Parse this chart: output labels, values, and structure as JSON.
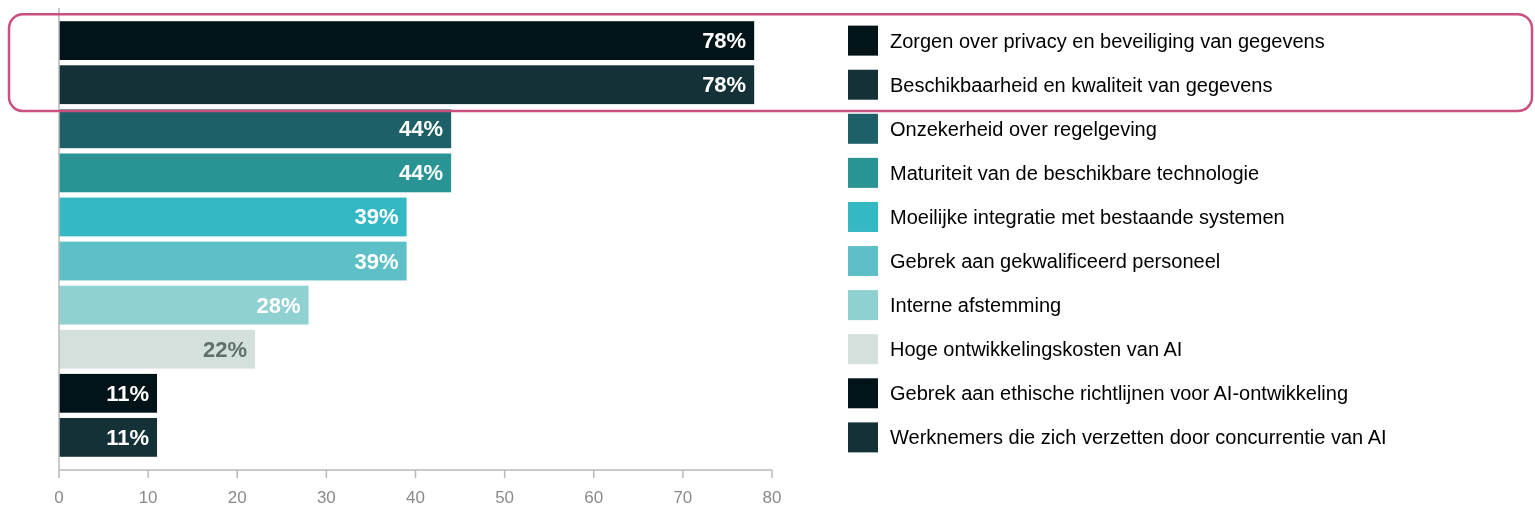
{
  "chart_data": {
    "type": "bar",
    "orientation": "horizontal",
    "categories": [
      null,
      null,
      null,
      null,
      null,
      null,
      null,
      null,
      null,
      null
    ],
    "series": [
      {
        "name": "Zorgen over privacy en beveiliging van gegevens",
        "color": "#021417",
        "values": [
          78,
          null,
          null,
          null,
          null,
          null,
          null,
          null,
          null,
          null
        ],
        "value_labels": [
          "78%",
          null,
          null,
          null,
          null,
          null,
          null,
          null,
          null,
          null
        ]
      },
      {
        "name": "Beschikbaarheid en kwaliteit van gegevens",
        "color": "#133136",
        "values": [
          null,
          78,
          null,
          null,
          null,
          null,
          null,
          null,
          null,
          null
        ],
        "value_labels": [
          null,
          "78%",
          null,
          null,
          null,
          null,
          null,
          null,
          null,
          null
        ]
      },
      {
        "name": "Onzekerheid over regelgeving",
        "color": "#1e6068",
        "values": [
          null,
          null,
          44,
          null,
          null,
          null,
          null,
          null,
          null,
          null
        ],
        "value_labels": [
          null,
          null,
          "44%",
          null,
          null,
          null,
          null,
          null,
          null,
          null
        ]
      },
      {
        "name": "Maturiteit van de beschikbare technologie",
        "color": "#2a9494",
        "values": [
          null,
          null,
          null,
          44,
          null,
          null,
          null,
          null,
          null,
          null
        ],
        "value_labels": [
          null,
          null,
          null,
          "44%",
          null,
          null,
          null,
          null,
          null,
          null
        ]
      },
      {
        "name": "Moeilijke integratie met bestaande systemen",
        "color": "#33b8c4",
        "values": [
          null,
          null,
          null,
          null,
          39,
          null,
          null,
          null,
          null,
          null
        ],
        "value_labels": [
          null,
          null,
          null,
          null,
          "39%",
          null,
          null,
          null,
          null,
          null
        ]
      },
      {
        "name": "Gebrek aan gekwalificeerd personeel",
        "color": "#5cc0c6",
        "values": [
          null,
          null,
          null,
          null,
          null,
          39,
          null,
          null,
          null,
          null
        ],
        "value_labels": [
          null,
          null,
          null,
          null,
          null,
          "39%",
          null,
          null,
          null,
          null
        ]
      },
      {
        "name": "Interne afstemming",
        "color": "#8fd0d0",
        "values": [
          null,
          null,
          null,
          null,
          null,
          null,
          28,
          null,
          null,
          null
        ],
        "value_labels": [
          null,
          null,
          null,
          null,
          null,
          null,
          "28%",
          null,
          null,
          null
        ]
      },
      {
        "name": "Hoge ontwikkelingskosten van AI",
        "color": "#d4e0dc",
        "values": [
          null,
          null,
          null,
          null,
          null,
          null,
          null,
          22,
          null,
          null
        ],
        "value_labels": [
          null,
          null,
          null,
          null,
          null,
          null,
          null,
          "22%",
          null,
          null
        ]
      },
      {
        "name": "Gebrek aan ethische richtlijnen voor AI-ontwikkeling",
        "color": "#021417",
        "values": [
          null,
          null,
          null,
          null,
          null,
          null,
          null,
          null,
          11,
          null
        ],
        "value_labels": [
          null,
          null,
          null,
          null,
          null,
          null,
          null,
          null,
          "11%",
          null
        ]
      },
      {
        "name": "Werknemers die zich verzetten door concurrentie van AI",
        "color": "#133136",
        "values": [
          null,
          null,
          null,
          null,
          null,
          null,
          null,
          null,
          null,
          11
        ],
        "value_labels": [
          null,
          null,
          null,
          null,
          null,
          null,
          null,
          null,
          null,
          "11%"
        ]
      }
    ],
    "xlim": [
      0,
      80
    ],
    "xticks": [
      0,
      10,
      20,
      30,
      40,
      50,
      60,
      70,
      80
    ],
    "tick_labels": "x",
    "grid": false,
    "legend": "right"
  }
}
